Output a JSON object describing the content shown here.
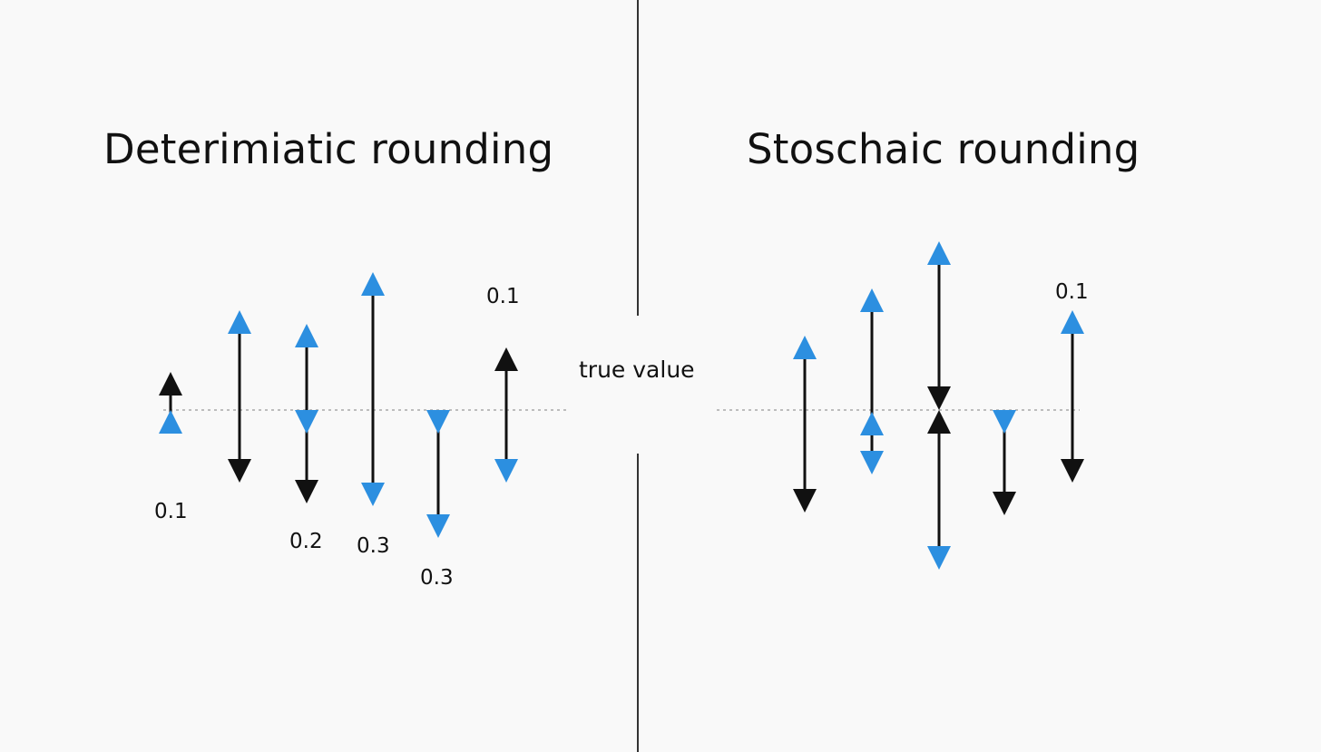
{
  "titles": {
    "left": "Deterimiatic rounding",
    "right": "Stoschaic rounding"
  },
  "reference_line": {
    "label": "true value"
  },
  "colors": {
    "accent": "#2c8fe0",
    "dark": "#111111",
    "reference_line": "#bdbdbd",
    "divider": "#333333"
  },
  "deterministic": {
    "labels": [
      "0.1",
      "0.2",
      "0.3",
      "0.3",
      "0.1"
    ]
  },
  "stochastic": {
    "labels": [
      "0.1"
    ]
  }
}
